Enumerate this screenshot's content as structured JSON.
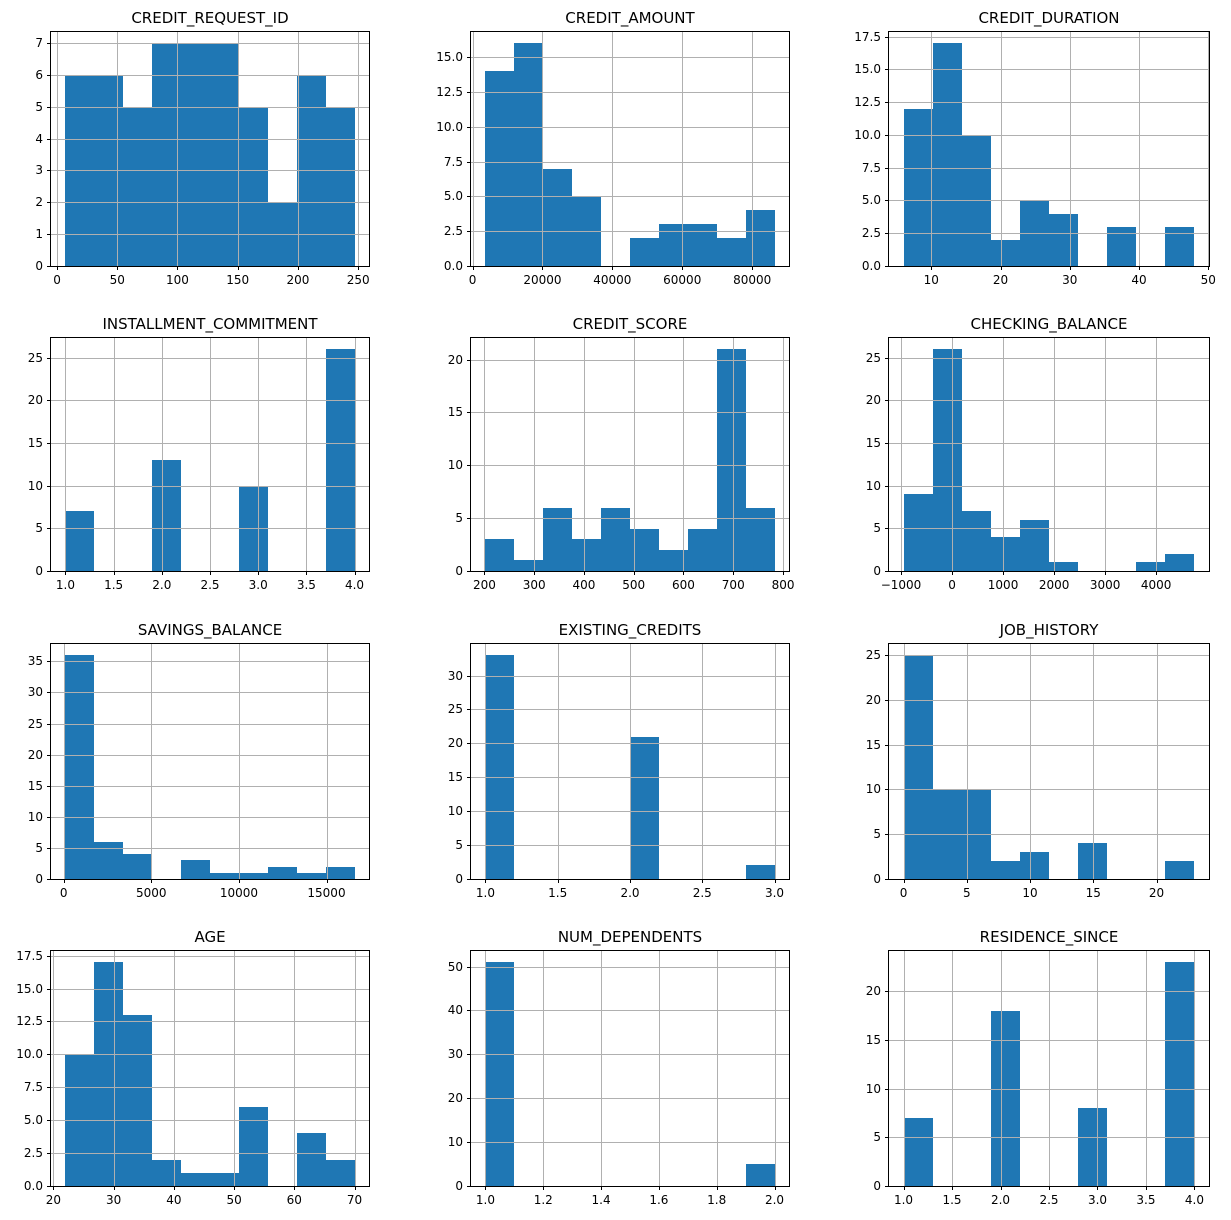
{
  "figure": {
    "background": "#ffffff",
    "bar_color": "#1f77b4",
    "grid_color": "#b0b0b0",
    "spine_color": "#000000",
    "text_color": "#000000",
    "grid_on": true,
    "grid_above_bars": true,
    "layout": "4 rows x 3 columns of histograms",
    "total_observations": 56
  },
  "chart_data": [
    {
      "type": "bar",
      "subtype": "histogram",
      "title": "CREDIT_REQUEST_ID",
      "bin_edges": [
        7,
        31,
        55,
        79,
        103,
        127,
        151,
        175,
        199,
        223,
        247
      ],
      "counts": [
        6,
        6,
        5,
        7,
        7,
        7,
        5,
        2,
        6,
        5
      ],
      "xlim": [
        -5,
        259
      ],
      "ylim": [
        0,
        7.35
      ],
      "xticks": [
        0,
        50,
        100,
        150,
        200,
        250
      ],
      "xtick_labels": [
        "0",
        "50",
        "100",
        "150",
        "200",
        "250"
      ],
      "yticks": [
        0,
        1,
        2,
        3,
        4,
        5,
        6,
        7
      ],
      "ytick_labels": [
        "0",
        "1",
        "2",
        "3",
        "4",
        "5",
        "6",
        "7"
      ]
    },
    {
      "type": "bar",
      "subtype": "histogram",
      "title": "CREDIT_AMOUNT",
      "bin_edges": [
        3700,
        11970,
        20240,
        28510,
        36780,
        45050,
        53320,
        61590,
        69860,
        78130,
        86400
      ],
      "counts": [
        14,
        16,
        7,
        5,
        0,
        2,
        3,
        3,
        2,
        4
      ],
      "xlim": [
        -435,
        90535
      ],
      "ylim": [
        0,
        16.8
      ],
      "xticks": [
        0,
        20000,
        40000,
        60000,
        80000
      ],
      "xtick_labels": [
        "0",
        "20000",
        "40000",
        "60000",
        "80000"
      ],
      "yticks": [
        0,
        2.5,
        5,
        7.5,
        10,
        12.5,
        15
      ],
      "ytick_labels": [
        "0.0",
        "2.5",
        "5.0",
        "7.5",
        "10.0",
        "12.5",
        "15.0"
      ]
    },
    {
      "type": "bar",
      "subtype": "histogram",
      "title": "CREDIT_DURATION",
      "bin_edges": [
        6,
        10.2,
        14.4,
        18.6,
        22.8,
        27,
        31.2,
        35.4,
        39.6,
        43.8,
        48
      ],
      "counts": [
        12,
        17,
        10,
        2,
        5,
        4,
        0,
        3,
        0,
        3
      ],
      "xlim": [
        3.9,
        50.1
      ],
      "ylim": [
        0,
        17.85
      ],
      "xticks": [
        10,
        20,
        30,
        40,
        50
      ],
      "xtick_labels": [
        "10",
        "20",
        "30",
        "40",
        "50"
      ],
      "yticks": [
        0,
        2.5,
        5,
        7.5,
        10,
        12.5,
        15,
        17.5
      ],
      "ytick_labels": [
        "0.0",
        "2.5",
        "5.0",
        "7.5",
        "10.0",
        "12.5",
        "15.0",
        "17.5"
      ]
    },
    {
      "type": "bar",
      "subtype": "histogram",
      "title": "INSTALLMENT_COMMITMENT",
      "bin_edges": [
        1,
        1.3,
        1.6,
        1.9,
        2.2,
        2.5,
        2.8,
        3.1,
        3.4,
        3.7,
        4
      ],
      "counts": [
        7,
        0,
        0,
        13,
        0,
        0,
        10,
        0,
        0,
        26
      ],
      "xlim": [
        0.85,
        4.15
      ],
      "ylim": [
        0,
        27.3
      ],
      "xticks": [
        1,
        1.5,
        2,
        2.5,
        3,
        3.5,
        4
      ],
      "xtick_labels": [
        "1.0",
        "1.5",
        "2.0",
        "2.5",
        "3.0",
        "3.5",
        "4.0"
      ],
      "yticks": [
        0,
        5,
        10,
        15,
        20,
        25
      ],
      "ytick_labels": [
        "0",
        "5",
        "10",
        "15",
        "20",
        "25"
      ]
    },
    {
      "type": "bar",
      "subtype": "histogram",
      "title": "CREDIT_SCORE",
      "bin_edges": [
        202,
        260.1,
        318.2,
        376.3,
        434.4,
        492.5,
        550.6,
        608.7,
        666.8,
        724.9,
        783
      ],
      "counts": [
        3,
        1,
        6,
        3,
        6,
        4,
        2,
        4,
        21,
        6
      ],
      "xlim": [
        173,
        812
      ],
      "ylim": [
        0,
        22.05
      ],
      "xticks": [
        200,
        300,
        400,
        500,
        600,
        700,
        800
      ],
      "xtick_labels": [
        "200",
        "300",
        "400",
        "500",
        "600",
        "700",
        "800"
      ],
      "yticks": [
        0,
        5,
        10,
        15,
        20
      ],
      "ytick_labels": [
        "0",
        "5",
        "10",
        "15",
        "20"
      ]
    },
    {
      "type": "bar",
      "subtype": "histogram",
      "title": "CHECKING_BALANCE",
      "bin_edges": [
        -950,
        -380,
        190,
        760,
        1330,
        1900,
        2470,
        3040,
        3610,
        4180,
        4750
      ],
      "counts": [
        9,
        26,
        7,
        4,
        6,
        1,
        0,
        0,
        1,
        2
      ],
      "xlim": [
        -1235,
        5035
      ],
      "ylim": [
        0,
        27.3
      ],
      "xticks": [
        -1000,
        0,
        1000,
        2000,
        3000,
        4000
      ],
      "xtick_labels": [
        "−1000",
        "0",
        "1000",
        "2000",
        "3000",
        "4000"
      ],
      "yticks": [
        0,
        5,
        10,
        15,
        20,
        25
      ],
      "ytick_labels": [
        "0",
        "5",
        "10",
        "15",
        "20",
        "25"
      ]
    },
    {
      "type": "bar",
      "subtype": "histogram",
      "title": "SAVINGS_BALANCE",
      "bin_edges": [
        100,
        1750,
        3400,
        5050,
        6700,
        8350,
        10000,
        11650,
        13300,
        14950,
        16600
      ],
      "counts": [
        36,
        6,
        4,
        0,
        3,
        1,
        1,
        2,
        1,
        2
      ],
      "xlim": [
        -725,
        17425
      ],
      "ylim": [
        0,
        37.8
      ],
      "xticks": [
        0,
        5000,
        10000,
        15000
      ],
      "xtick_labels": [
        "0",
        "5000",
        "10000",
        "15000"
      ],
      "yticks": [
        0,
        5,
        10,
        15,
        20,
        25,
        30,
        35
      ],
      "ytick_labels": [
        "0",
        "5",
        "10",
        "15",
        "20",
        "25",
        "30",
        "35"
      ]
    },
    {
      "type": "bar",
      "subtype": "histogram",
      "title": "EXISTING_CREDITS",
      "bin_edges": [
        1,
        1.2,
        1.4,
        1.6,
        1.8,
        2,
        2.2,
        2.4,
        2.6,
        2.8,
        3
      ],
      "counts": [
        33,
        0,
        0,
        0,
        0,
        21,
        0,
        0,
        0,
        2
      ],
      "xlim": [
        0.9,
        3.1
      ],
      "ylim": [
        0,
        34.65
      ],
      "xticks": [
        1,
        1.5,
        2,
        2.5,
        3
      ],
      "xtick_labels": [
        "1.0",
        "1.5",
        "2.0",
        "2.5",
        "3.0"
      ],
      "yticks": [
        0,
        5,
        10,
        15,
        20,
        25,
        30
      ],
      "ytick_labels": [
        "0",
        "5",
        "10",
        "15",
        "20",
        "25",
        "30"
      ]
    },
    {
      "type": "bar",
      "subtype": "histogram",
      "title": "JOB_HISTORY",
      "bin_edges": [
        0,
        2.3,
        4.6,
        6.9,
        9.2,
        11.5,
        13.8,
        16.1,
        18.4,
        20.7,
        23
      ],
      "counts": [
        25,
        10,
        10,
        2,
        3,
        0,
        4,
        0,
        0,
        2
      ],
      "xlim": [
        -1.15,
        24.15
      ],
      "ylim": [
        0,
        26.25
      ],
      "xticks": [
        0,
        5,
        10,
        15,
        20
      ],
      "xtick_labels": [
        "0",
        "5",
        "10",
        "15",
        "20"
      ],
      "yticks": [
        0,
        5,
        10,
        15,
        20,
        25
      ],
      "ytick_labels": [
        "0",
        "5",
        "10",
        "15",
        "20",
        "25"
      ]
    },
    {
      "type": "bar",
      "subtype": "histogram",
      "title": "AGE",
      "bin_edges": [
        22,
        26.8,
        31.6,
        36.4,
        41.2,
        46,
        50.8,
        55.6,
        60.4,
        65.2,
        70
      ],
      "counts": [
        10,
        17,
        13,
        2,
        1,
        1,
        6,
        0,
        4,
        2
      ],
      "xlim": [
        19.6,
        72.4
      ],
      "ylim": [
        0,
        17.85
      ],
      "xticks": [
        20,
        30,
        40,
        50,
        60,
        70
      ],
      "xtick_labels": [
        "20",
        "30",
        "40",
        "50",
        "60",
        "70"
      ],
      "yticks": [
        0,
        2.5,
        5,
        7.5,
        10,
        12.5,
        15,
        17.5
      ],
      "ytick_labels": [
        "0.0",
        "2.5",
        "5.0",
        "7.5",
        "10.0",
        "12.5",
        "15.0",
        "17.5"
      ]
    },
    {
      "type": "bar",
      "subtype": "histogram",
      "title": "NUM_DEPENDENTS",
      "bin_edges": [
        1,
        1.1,
        1.2,
        1.3,
        1.4,
        1.5,
        1.6,
        1.7,
        1.8,
        1.9,
        2
      ],
      "counts": [
        51,
        0,
        0,
        0,
        0,
        0,
        0,
        0,
        0,
        5
      ],
      "xlim": [
        0.95,
        2.05
      ],
      "ylim": [
        0,
        53.55
      ],
      "xticks": [
        1,
        1.2,
        1.4,
        1.6,
        1.8,
        2
      ],
      "xtick_labels": [
        "1.0",
        "1.2",
        "1.4",
        "1.6",
        "1.8",
        "2.0"
      ],
      "yticks": [
        0,
        10,
        20,
        30,
        40,
        50
      ],
      "ytick_labels": [
        "0",
        "10",
        "20",
        "30",
        "40",
        "50"
      ]
    },
    {
      "type": "bar",
      "subtype": "histogram",
      "title": "RESIDENCE_SINCE",
      "bin_edges": [
        1,
        1.3,
        1.6,
        1.9,
        2.2,
        2.5,
        2.8,
        3.1,
        3.4,
        3.7,
        4
      ],
      "counts": [
        7,
        0,
        0,
        18,
        0,
        0,
        8,
        0,
        0,
        23
      ],
      "xlim": [
        0.85,
        4.15
      ],
      "ylim": [
        0,
        24.15
      ],
      "xticks": [
        1,
        1.5,
        2,
        2.5,
        3,
        3.5,
        4
      ],
      "xtick_labels": [
        "1.0",
        "1.5",
        "2.0",
        "2.5",
        "3.0",
        "3.5",
        "4.0"
      ],
      "yticks": [
        0,
        5,
        10,
        15,
        20
      ],
      "ytick_labels": [
        "0",
        "5",
        "10",
        "15",
        "20"
      ]
    }
  ]
}
